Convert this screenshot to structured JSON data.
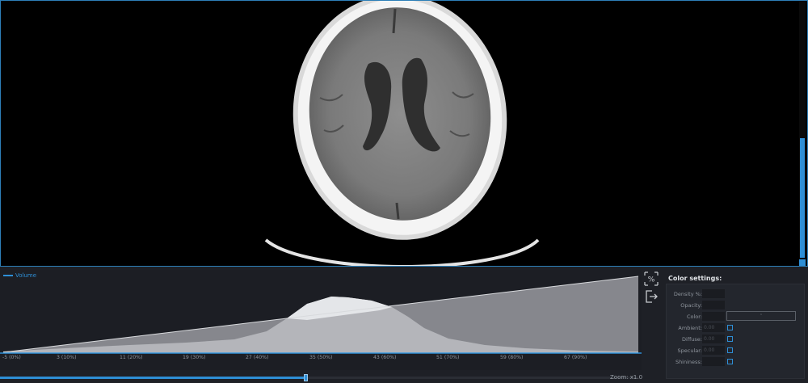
{
  "viewer": {
    "image_name": "brain-ct-axial-slice"
  },
  "transfer_function": {
    "legend_label": "Volume",
    "accent_color": "#2e8fd6",
    "ticks": [
      "-5 (0%)",
      "3 (10%)",
      "11 (20%)",
      "19 (30%)",
      "27 (40%)",
      "35 (50%)",
      "43 (60%)",
      "51 (70%)",
      "59 (80%)",
      "67 (90%)"
    ],
    "slider_position_fraction": 0.48,
    "zoom_label": "Zoom: x1.0"
  },
  "tools": [
    {
      "icon": "window-level-icon"
    },
    {
      "icon": "export-icon"
    }
  ],
  "color_settings": {
    "title": "Color settings:",
    "rows": [
      {
        "label": "Density %:",
        "value": ""
      },
      {
        "label": "Opacity:",
        "value": ""
      },
      {
        "label": "Color:",
        "value": ""
      },
      {
        "label": "Ambient:",
        "value": "0.00"
      },
      {
        "label": "Diffuse:",
        "value": "0.00"
      },
      {
        "label": "Specular:",
        "value": "0.00"
      },
      {
        "label": "Shininess:",
        "value": ""
      }
    ]
  }
}
